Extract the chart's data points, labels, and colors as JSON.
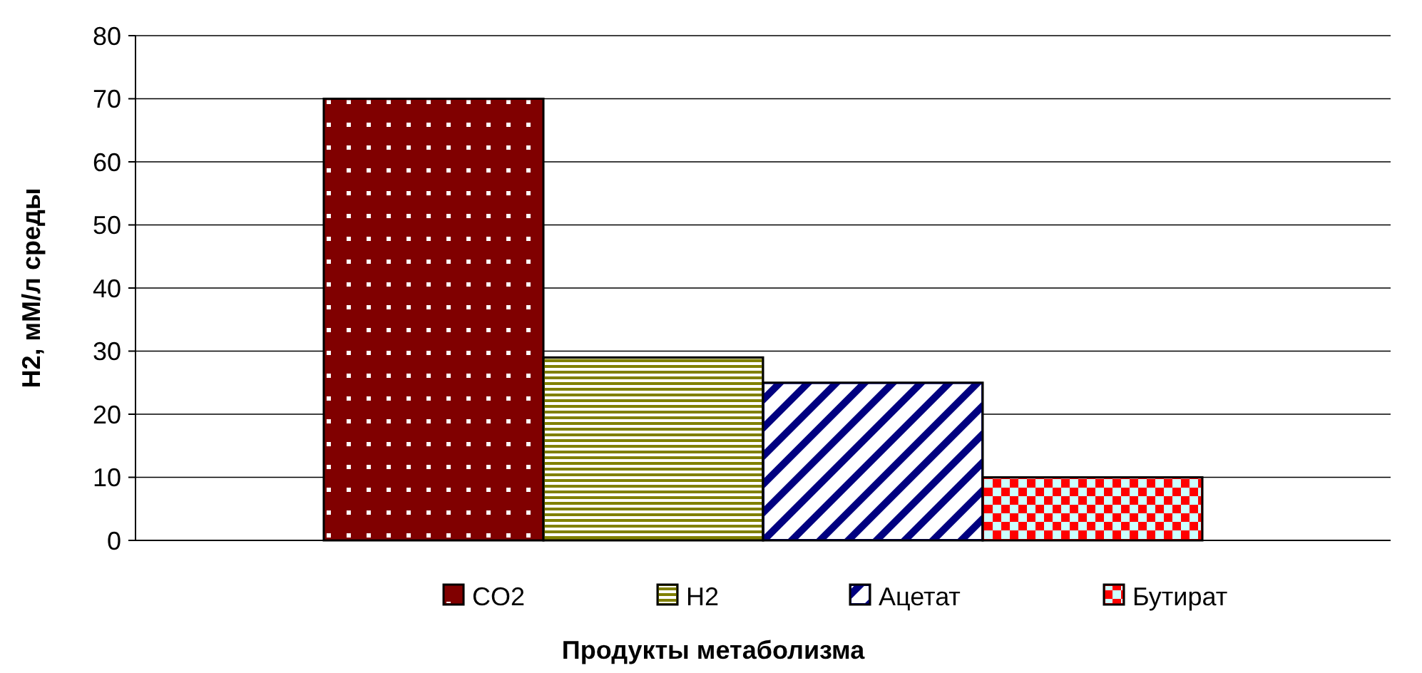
{
  "chart_data": {
    "type": "bar",
    "xlabel": "Продукты метаболизма",
    "ylabel": "H2, мМ/л среды",
    "categories": [
      null
    ],
    "series": [
      {
        "name": "CO2",
        "color": "#800000",
        "values": [
          70
        ]
      },
      {
        "name": "H2",
        "color": "#808000",
        "values": [
          29
        ]
      },
      {
        "name": "Ацетат",
        "color": "#000080",
        "values": [
          25
        ]
      },
      {
        "name": "Бутират",
        "color": "#ff0000",
        "values": [
          10
        ]
      }
    ],
    "ylim": [
      0,
      80
    ],
    "yticks": [
      0,
      10,
      20,
      30,
      40,
      50,
      60,
      70,
      80
    ],
    "grid": "y",
    "legend": "bottom"
  }
}
